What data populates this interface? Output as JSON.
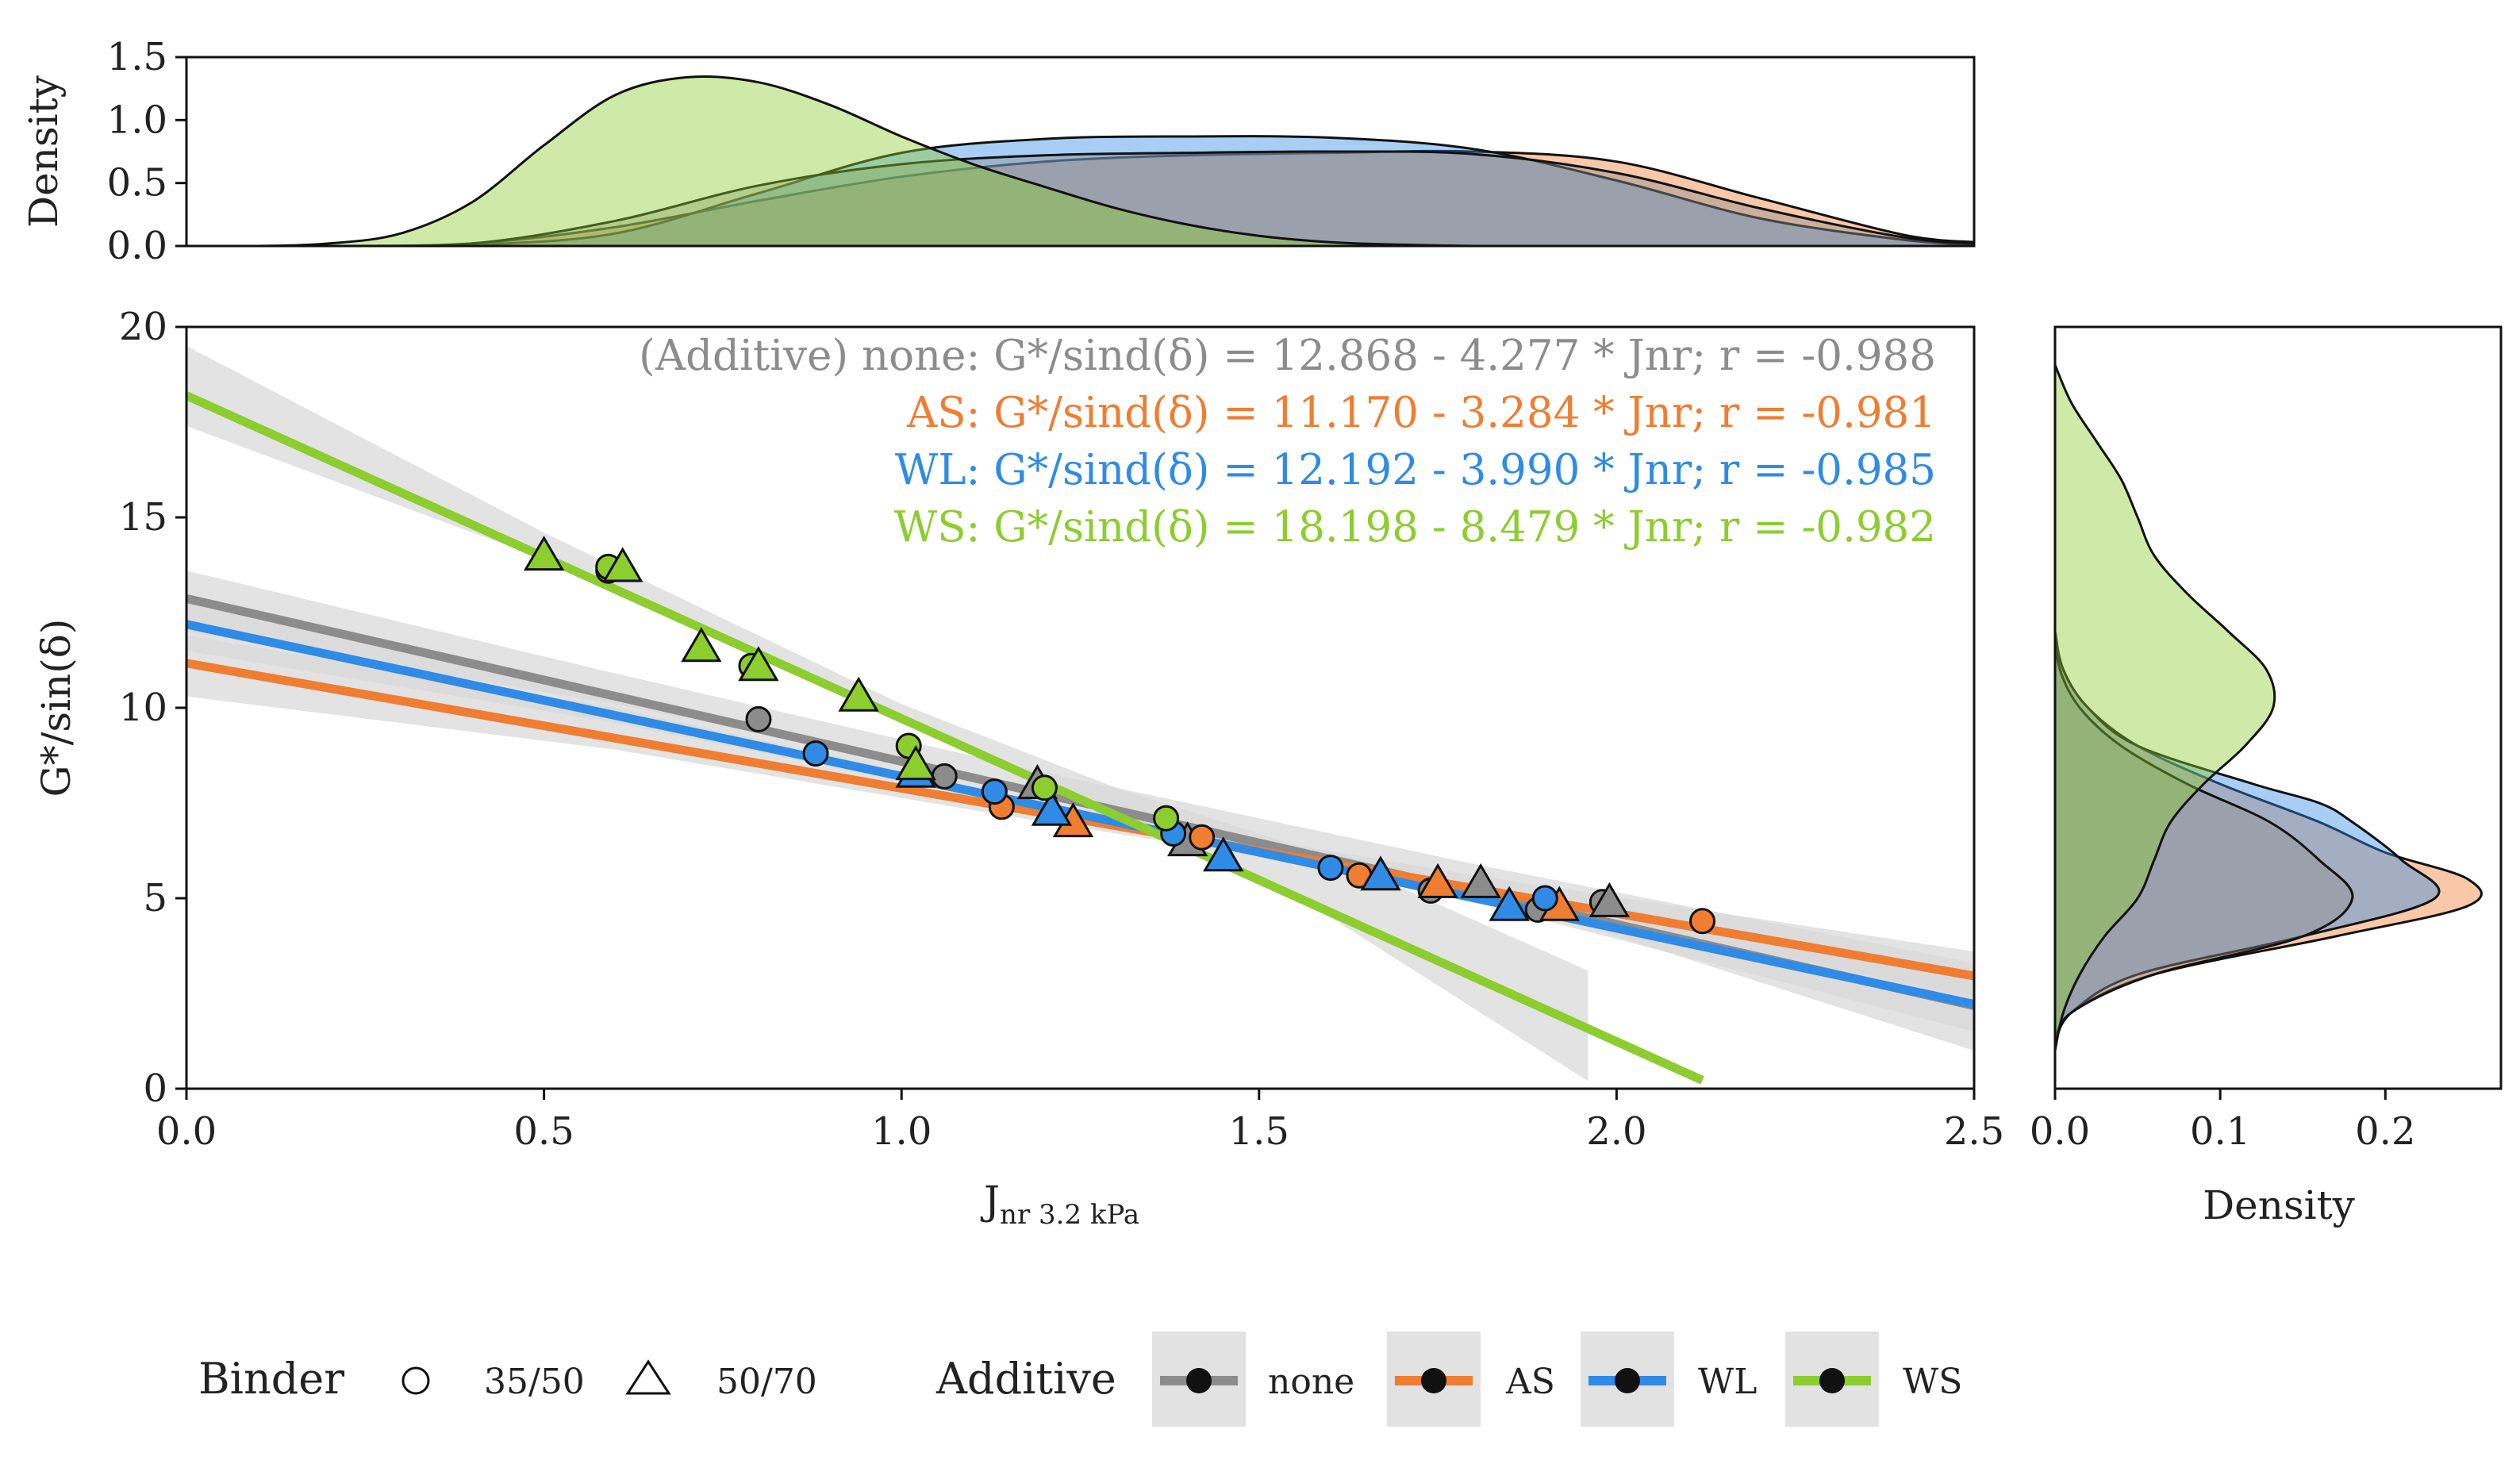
{
  "colors": {
    "none": "#8c8c8c",
    "AS": "#ef7d32",
    "WL": "#2f8be6",
    "WS": "#8ccd2f",
    "ci_band": "#d9d9d9",
    "legend_box": "#e2e2e2"
  },
  "chart_data": [
    {
      "id": "main",
      "type": "scatter",
      "xlabel_main": "J",
      "xlabel_sub": "nr  3.2  kPa",
      "ylabel": "G*/sin(δ)",
      "xlim": [
        0.0,
        2.5
      ],
      "ylim": [
        0,
        20
      ],
      "xticks": [
        "0.0",
        "0.5",
        "1.0",
        "1.5",
        "2.0",
        "2.5"
      ],
      "yticks": [
        "0",
        "5",
        "10",
        "15",
        "20"
      ],
      "grid": false,
      "regression_labels": [
        {
          "group": "none",
          "text": "(Additive) none: G*/sind(δ) = 12.868 - 4.277 * Jnr; r = -0.988"
        },
        {
          "group": "AS",
          "text": "AS: G*/sind(δ) = 11.170 - 3.284 * Jnr; r = -0.981"
        },
        {
          "group": "WL",
          "text": "WL: G*/sind(δ) = 12.192 - 3.990 * Jnr; r = -0.985"
        },
        {
          "group": "WS",
          "text": "WS: G*/sind(δ) = 18.198 - 8.479 * Jnr; r = -0.982"
        }
      ],
      "regression_lines": [
        {
          "group": "none",
          "x": [
            0.0,
            2.5
          ],
          "y": [
            12.868,
            2.176
          ]
        },
        {
          "group": "AS",
          "x": [
            0.0,
            2.5
          ],
          "y": [
            11.17,
            2.96
          ]
        },
        {
          "group": "WL",
          "x": [
            0.0,
            2.5
          ],
          "y": [
            12.192,
            2.217
          ]
        },
        {
          "group": "WS",
          "x": [
            0.0,
            2.12
          ],
          "y": [
            18.198,
            0.22
          ]
        }
      ],
      "ci_bands": [
        {
          "group": "none",
          "x": [
            0.0,
            0.6,
            1.2,
            1.8,
            2.5
          ],
          "lower": [
            12.0,
            10.1,
            7.8,
            5.2,
            1.0
          ],
          "upper": [
            13.6,
            10.9,
            8.3,
            5.9,
            3.3
          ]
        },
        {
          "group": "AS",
          "x": [
            0.0,
            0.6,
            1.2,
            1.8,
            2.5
          ],
          "lower": [
            10.3,
            8.9,
            7.0,
            5.2,
            2.4
          ],
          "upper": [
            11.9,
            10.0,
            7.5,
            5.6,
            3.6
          ]
        },
        {
          "group": "WL",
          "x": [
            0.0,
            0.6,
            1.2,
            1.8,
            2.5
          ],
          "lower": [
            11.5,
            9.6,
            7.3,
            4.9,
            1.5
          ],
          "upper": [
            12.9,
            10.4,
            7.7,
            5.4,
            2.9
          ]
        },
        {
          "group": "WS",
          "x": [
            0.0,
            0.5,
            1.0,
            1.3,
            1.6,
            1.96
          ],
          "lower": [
            17.4,
            13.9,
            9.7,
            7.2,
            4.5,
            0.2
          ],
          "upper": [
            19.5,
            14.6,
            10.1,
            7.9,
            6.1,
            3.1
          ]
        }
      ],
      "points": [
        {
          "group": "none",
          "binder": "35/50",
          "x": 0.8,
          "y": 9.7
        },
        {
          "group": "none",
          "binder": "35/50",
          "x": 1.06,
          "y": 8.2
        },
        {
          "group": "none",
          "binder": "35/50",
          "x": 1.74,
          "y": 5.2
        },
        {
          "group": "none",
          "binder": "35/50",
          "x": 1.89,
          "y": 4.7
        },
        {
          "group": "none",
          "binder": "35/50",
          "x": 1.98,
          "y": 4.9
        },
        {
          "group": "none",
          "binder": "50/70",
          "x": 1.19,
          "y": 8.0
        },
        {
          "group": "none",
          "binder": "50/70",
          "x": 1.4,
          "y": 6.5
        },
        {
          "group": "none",
          "binder": "50/70",
          "x": 1.81,
          "y": 5.4
        },
        {
          "group": "none",
          "binder": "50/70",
          "x": 1.99,
          "y": 4.9
        },
        {
          "group": "AS",
          "binder": "35/50",
          "x": 0.59,
          "y": 13.6
        },
        {
          "group": "AS",
          "binder": "35/50",
          "x": 1.14,
          "y": 7.4
        },
        {
          "group": "AS",
          "binder": "35/50",
          "x": 1.42,
          "y": 6.6
        },
        {
          "group": "AS",
          "binder": "35/50",
          "x": 1.64,
          "y": 5.6
        },
        {
          "group": "AS",
          "binder": "35/50",
          "x": 2.12,
          "y": 4.4
        },
        {
          "group": "AS",
          "binder": "50/70",
          "x": 1.24,
          "y": 7.0
        },
        {
          "group": "AS",
          "binder": "50/70",
          "x": 1.75,
          "y": 5.4
        },
        {
          "group": "AS",
          "binder": "50/70",
          "x": 1.92,
          "y": 4.8
        },
        {
          "group": "WL",
          "binder": "35/50",
          "x": 0.88,
          "y": 8.8
        },
        {
          "group": "WL",
          "binder": "35/50",
          "x": 1.13,
          "y": 7.8
        },
        {
          "group": "WL",
          "binder": "35/50",
          "x": 1.38,
          "y": 6.7
        },
        {
          "group": "WL",
          "binder": "35/50",
          "x": 1.6,
          "y": 5.8
        },
        {
          "group": "WL",
          "binder": "35/50",
          "x": 1.9,
          "y": 5.0
        },
        {
          "group": "WL",
          "binder": "50/70",
          "x": 1.02,
          "y": 8.3
        },
        {
          "group": "WL",
          "binder": "50/70",
          "x": 1.21,
          "y": 7.3
        },
        {
          "group": "WL",
          "binder": "50/70",
          "x": 1.45,
          "y": 6.1
        },
        {
          "group": "WL",
          "binder": "50/70",
          "x": 1.67,
          "y": 5.6
        },
        {
          "group": "WL",
          "binder": "50/70",
          "x": 1.85,
          "y": 4.8
        },
        {
          "group": "WS",
          "binder": "35/50",
          "x": 0.59,
          "y": 13.7
        },
        {
          "group": "WS",
          "binder": "35/50",
          "x": 0.79,
          "y": 11.1
        },
        {
          "group": "WS",
          "binder": "35/50",
          "x": 1.01,
          "y": 9.0
        },
        {
          "group": "WS",
          "binder": "35/50",
          "x": 1.2,
          "y": 7.9
        },
        {
          "group": "WS",
          "binder": "35/50",
          "x": 1.37,
          "y": 7.1
        },
        {
          "group": "WS",
          "binder": "50/70",
          "x": 0.5,
          "y": 14.0
        },
        {
          "group": "WS",
          "binder": "50/70",
          "x": 0.61,
          "y": 13.7
        },
        {
          "group": "WS",
          "binder": "50/70",
          "x": 0.72,
          "y": 11.6
        },
        {
          "group": "WS",
          "binder": "50/70",
          "x": 0.8,
          "y": 11.1
        },
        {
          "group": "WS",
          "binder": "50/70",
          "x": 0.94,
          "y": 10.3
        },
        {
          "group": "WS",
          "binder": "50/70",
          "x": 1.02,
          "y": 8.5
        }
      ]
    },
    {
      "id": "top-density",
      "type": "area",
      "ylabel": "Density",
      "xlim": [
        0.0,
        2.5
      ],
      "ylim": [
        0,
        1.5
      ],
      "yticks": [
        "0.0",
        "0.5",
        "1.0",
        "1.5"
      ],
      "series": [
        {
          "name": "AS",
          "x": [
            0.0,
            0.2,
            0.4,
            0.6,
            0.8,
            1.0,
            1.2,
            1.4,
            1.6,
            1.8,
            2.0,
            2.2,
            2.4,
            2.5
          ],
          "values": [
            0.0,
            0.0,
            0.02,
            0.15,
            0.36,
            0.55,
            0.67,
            0.72,
            0.74,
            0.75,
            0.67,
            0.38,
            0.09,
            0.03
          ]
        },
        {
          "name": "WL",
          "x": [
            0.0,
            0.2,
            0.4,
            0.6,
            0.8,
            1.0,
            1.2,
            1.4,
            1.6,
            1.8,
            2.0,
            2.2,
            2.4,
            2.5
          ],
          "values": [
            0.0,
            0.0,
            0.01,
            0.1,
            0.42,
            0.74,
            0.85,
            0.87,
            0.86,
            0.77,
            0.52,
            0.22,
            0.05,
            0.01
          ]
        },
        {
          "name": "none",
          "x": [
            0.0,
            0.2,
            0.4,
            0.6,
            0.8,
            1.0,
            1.2,
            1.4,
            1.6,
            1.8,
            2.0,
            2.2,
            2.4,
            2.5
          ],
          "values": [
            0.0,
            0.0,
            0.02,
            0.2,
            0.48,
            0.65,
            0.72,
            0.74,
            0.75,
            0.73,
            0.58,
            0.3,
            0.07,
            0.02
          ]
        },
        {
          "name": "WS",
          "x": [
            0.0,
            0.1,
            0.2,
            0.3,
            0.4,
            0.5,
            0.6,
            0.7,
            0.8,
            0.9,
            1.0,
            1.1,
            1.2,
            1.3,
            1.4,
            1.5,
            1.6,
            1.7,
            1.8,
            1.9,
            2.0
          ],
          "values": [
            0.0,
            0.0,
            0.02,
            0.1,
            0.35,
            0.8,
            1.2,
            1.34,
            1.3,
            1.12,
            0.87,
            0.65,
            0.47,
            0.3,
            0.17,
            0.08,
            0.03,
            0.01,
            0.0,
            0.0,
            0.0
          ]
        }
      ]
    },
    {
      "id": "right-density",
      "type": "area",
      "xlabel": "Density",
      "xlim": [
        0.0,
        0.27
      ],
      "ylim": [
        0,
        20
      ],
      "xticks": [
        {
          "value": 0.0,
          "label": "0.0"
        },
        {
          "value": 0.1,
          "label": "0.1"
        },
        {
          "value": 0.2,
          "label": "0.2"
        }
      ],
      "series": [
        {
          "name": "AS",
          "y": [
            1.2,
            2.0,
            3.0,
            4.0,
            4.8,
            5.5,
            6.2,
            7.0,
            8.0,
            9.0,
            10.0,
            11.0,
            12.0
          ],
          "values": [
            0.0,
            0.01,
            0.06,
            0.17,
            0.25,
            0.25,
            0.2,
            0.16,
            0.1,
            0.05,
            0.02,
            0.005,
            0.0
          ]
        },
        {
          "name": "WL",
          "y": [
            1.2,
            2.0,
            3.0,
            4.0,
            5.0,
            6.0,
            7.0,
            7.5,
            8.0,
            9.0,
            10.0,
            11.0,
            12.0
          ],
          "values": [
            0.0,
            0.01,
            0.05,
            0.15,
            0.23,
            0.21,
            0.18,
            0.16,
            0.12,
            0.05,
            0.02,
            0.005,
            0.0
          ]
        },
        {
          "name": "none",
          "y": [
            1.2,
            2.0,
            3.0,
            4.0,
            5.0,
            6.0,
            7.0,
            8.0,
            9.0,
            10.0,
            11.0,
            12.0
          ],
          "values": [
            0.0,
            0.01,
            0.06,
            0.15,
            0.18,
            0.16,
            0.13,
            0.08,
            0.04,
            0.015,
            0.003,
            0.0
          ]
        },
        {
          "name": "WS",
          "y": [
            1.0,
            2.0,
            3.0,
            4.0,
            5.0,
            6.0,
            7.0,
            8.0,
            9.0,
            10.0,
            11.0,
            12.0,
            13.0,
            14.0,
            15.0,
            16.0,
            17.0,
            18.0,
            19.0
          ],
          "values": [
            0.0,
            0.005,
            0.015,
            0.03,
            0.05,
            0.06,
            0.07,
            0.09,
            0.115,
            0.132,
            0.128,
            0.105,
            0.08,
            0.06,
            0.05,
            0.04,
            0.025,
            0.01,
            0.0
          ]
        }
      ]
    }
  ],
  "legend": {
    "binder_title": "Binder",
    "binder_items": [
      {
        "shape": "circle",
        "label": "35/50"
      },
      {
        "shape": "triangle",
        "label": "50/70"
      }
    ],
    "additive_title": "Additive",
    "additive_items": [
      {
        "group": "none",
        "label": "none"
      },
      {
        "group": "AS",
        "label": "AS"
      },
      {
        "group": "WL",
        "label": "WL"
      },
      {
        "group": "WS",
        "label": "WS"
      }
    ]
  }
}
